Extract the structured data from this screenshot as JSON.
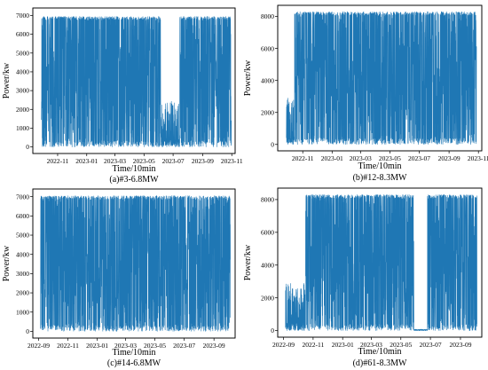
{
  "chart_data": [
    {
      "type": "line",
      "caption": "(a)#3-6.8MW",
      "xlabel": "Time/10min",
      "ylabel": "Power/kw",
      "series_color": "#1f77b4",
      "x_range": [
        "2022-09-10",
        "2023-11-08"
      ],
      "ylim": [
        -350,
        7400
      ],
      "x_ticks": [
        {
          "date": "2022-11-01",
          "label": "2022-11"
        },
        {
          "date": "2023-01-01",
          "label": "2023-01"
        },
        {
          "date": "2023-03-01",
          "label": "2023-03"
        },
        {
          "date": "2023-05-01",
          "label": "2023-05"
        },
        {
          "date": "2023-07-01",
          "label": "2023-07"
        },
        {
          "date": "2023-09-01",
          "label": "2023-09"
        },
        {
          "date": "2023-11-01",
          "label": "2023-11"
        }
      ],
      "y_ticks": [
        0,
        1000,
        2000,
        3000,
        4000,
        5000,
        6000,
        7000
      ],
      "data_span": [
        "2022-09-28",
        "2023-10-31"
      ],
      "max_power": 6950,
      "segments": [
        {
          "start": "2022-09-28",
          "end": "2023-06-05",
          "level": "high"
        },
        {
          "start": "2023-06-05",
          "end": "2023-07-15",
          "level": "low"
        },
        {
          "start": "2023-07-15",
          "end": "2023-10-31",
          "level": "high"
        }
      ]
    },
    {
      "type": "line",
      "caption": "(b)#12-8.3MW",
      "xlabel": "Time/10min",
      "ylabel": "Power/kw",
      "series_color": "#1f77b4",
      "x_range": [
        "2022-09-10",
        "2023-11-08"
      ],
      "ylim": [
        -400,
        8700
      ],
      "x_ticks": [
        {
          "date": "2022-11-01",
          "label": "2022-11"
        },
        {
          "date": "2023-01-01",
          "label": "2023-01"
        },
        {
          "date": "2023-03-01",
          "label": "2023-03"
        },
        {
          "date": "2023-05-01",
          "label": "2023-05"
        },
        {
          "date": "2023-07-01",
          "label": "2023-07"
        },
        {
          "date": "2023-09-01",
          "label": "2023-09"
        },
        {
          "date": "2023-11-01",
          "label": "2023-11"
        }
      ],
      "y_ticks": [
        0,
        2000,
        4000,
        6000,
        8000
      ],
      "data_span": [
        "2022-09-28",
        "2023-10-28"
      ],
      "max_power": 8300,
      "segments": [
        {
          "start": "2022-09-28",
          "end": "2022-10-15",
          "level": "low"
        },
        {
          "start": "2022-10-15",
          "end": "2023-10-28",
          "level": "high"
        }
      ]
    },
    {
      "type": "line",
      "caption": "(c)#14-6.8MW",
      "xlabel": "Time/10min",
      "ylabel": "Power/kw",
      "series_color": "#1f77b4",
      "x_range": [
        "2022-08-20",
        "2023-10-15"
      ],
      "ylim": [
        -350,
        7400
      ],
      "x_ticks": [
        {
          "date": "2022-09-01",
          "label": "2022-09"
        },
        {
          "date": "2022-11-01",
          "label": "2022-11"
        },
        {
          "date": "2023-01-01",
          "label": "2023-01"
        },
        {
          "date": "2023-03-01",
          "label": "2023-03"
        },
        {
          "date": "2023-05-01",
          "label": "2023-05"
        },
        {
          "date": "2023-07-01",
          "label": "2023-07"
        },
        {
          "date": "2023-09-01",
          "label": "2023-09"
        }
      ],
      "y_ticks": [
        0,
        1000,
        2000,
        3000,
        4000,
        5000,
        6000,
        7000
      ],
      "data_span": [
        "2022-09-05",
        "2023-10-05"
      ],
      "max_power": 7050,
      "segments": [
        {
          "start": "2022-09-05",
          "end": "2023-10-05",
          "level": "high"
        }
      ]
    },
    {
      "type": "line",
      "caption": "(d)#61-8.3MW",
      "xlabel": "Time/10min",
      "ylabel": "Power/kw",
      "series_color": "#1f77b4",
      "x_range": [
        "2022-08-20",
        "2023-10-15"
      ],
      "ylim": [
        -400,
        8700
      ],
      "x_ticks": [
        {
          "date": "2022-09-01",
          "label": "2022-09"
        },
        {
          "date": "2022-11-01",
          "label": "2022-11"
        },
        {
          "date": "2023-01-01",
          "label": "2023-01"
        },
        {
          "date": "2023-03-01",
          "label": "2023-03"
        },
        {
          "date": "2023-05-01",
          "label": "2023-05"
        },
        {
          "date": "2023-07-01",
          "label": "2023-07"
        },
        {
          "date": "2023-09-01",
          "label": "2023-09"
        }
      ],
      "y_ticks": [
        0,
        2000,
        4000,
        6000,
        8000
      ],
      "data_span": [
        "2022-09-05",
        "2023-10-05"
      ],
      "max_power": 8300,
      "segments": [
        {
          "start": "2022-09-05",
          "end": "2022-10-15",
          "level": "low"
        },
        {
          "start": "2022-10-15",
          "end": "2023-05-28",
          "level": "high"
        },
        {
          "start": "2023-05-28",
          "end": "2023-06-25",
          "level": "zero"
        },
        {
          "start": "2023-06-25",
          "end": "2023-10-05",
          "level": "high"
        }
      ]
    }
  ]
}
